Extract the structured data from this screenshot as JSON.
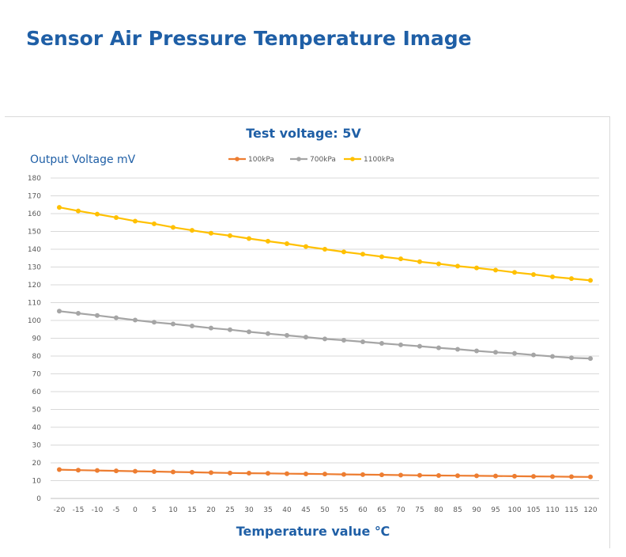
{
  "page": {
    "title": "Sensor Air Pressure Temperature Image"
  },
  "chart_data": {
    "type": "line",
    "title": "Test voltage: 5V",
    "ylabel": "Output Voltage mV",
    "xlabel": "Temperature value ℃",
    "ylim": [
      0,
      180
    ],
    "yticks": [
      0,
      10,
      20,
      30,
      40,
      50,
      60,
      70,
      80,
      90,
      100,
      110,
      120,
      130,
      140,
      150,
      160,
      170,
      180
    ],
    "x": [
      -20,
      -15,
      -10,
      -5,
      0,
      5,
      10,
      15,
      20,
      25,
      30,
      35,
      40,
      45,
      50,
      55,
      60,
      65,
      70,
      75,
      80,
      85,
      90,
      95,
      100,
      105,
      110,
      115,
      120
    ],
    "grid": true,
    "legend_position": "top",
    "series": [
      {
        "name": "100kPa",
        "color": "#ed7d31",
        "values": [
          16.2,
          15.9,
          15.7,
          15.5,
          15.3,
          15.1,
          14.9,
          14.7,
          14.5,
          14.3,
          14.2,
          14.1,
          13.9,
          13.8,
          13.7,
          13.5,
          13.4,
          13.3,
          13.1,
          13.0,
          12.9,
          12.8,
          12.7,
          12.6,
          12.5,
          12.4,
          12.3,
          12.2,
          12.1
        ]
      },
      {
        "name": "700kPa",
        "color": "#a5a5a5",
        "values": [
          105.2,
          104.0,
          102.8,
          101.5,
          100.2,
          99.0,
          98.0,
          96.9,
          95.7,
          94.8,
          93.6,
          92.6,
          91.6,
          90.6,
          89.6,
          88.9,
          88.0,
          87.1,
          86.3,
          85.5,
          84.6,
          83.8,
          82.9,
          82.1,
          81.5,
          80.6,
          79.8,
          79.0,
          78.6
        ]
      },
      {
        "name": "1100kPa",
        "color": "#ffc000",
        "values": [
          163.5,
          161.5,
          159.7,
          157.8,
          155.8,
          154.3,
          152.3,
          150.6,
          149.0,
          147.6,
          146.0,
          144.5,
          143.1,
          141.5,
          140.0,
          138.5,
          137.2,
          135.8,
          134.6,
          133.0,
          131.8,
          130.5,
          129.5,
          128.3,
          127.0,
          125.8,
          124.5,
          123.5,
          122.5
        ]
      }
    ]
  }
}
